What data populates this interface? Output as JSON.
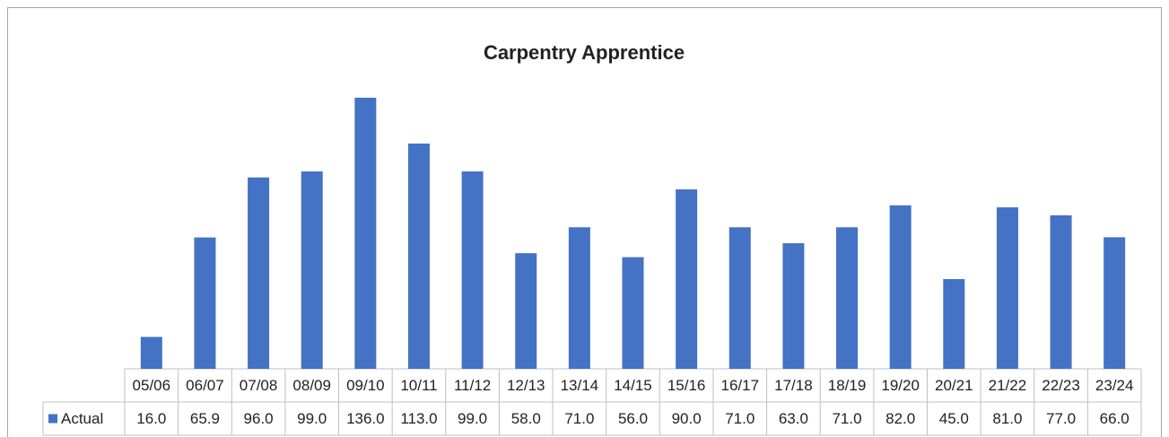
{
  "chart_data": {
    "type": "bar",
    "title": "Carpentry Apprentice",
    "categories": [
      "05/06",
      "06/07",
      "07/08",
      "08/09",
      "09/10",
      "10/11",
      "11/12",
      "12/13",
      "13/14",
      "14/15",
      "15/16",
      "16/17",
      "17/18",
      "18/19",
      "19/20",
      "20/21",
      "21/22",
      "22/23",
      "23/24"
    ],
    "series": [
      {
        "name": "Actual",
        "color": "#4472c4",
        "values": [
          16.0,
          65.9,
          96.0,
          99.0,
          136.0,
          113.0,
          99.0,
          58.0,
          71.0,
          56.0,
          90.0,
          71.0,
          63.0,
          71.0,
          82.0,
          45.0,
          81.0,
          77.0,
          66.0
        ],
        "value_labels": [
          "16.0",
          "65.9",
          "96.0",
          "99.0",
          "136.0",
          "113.0",
          "99.0",
          "58.0",
          "71.0",
          "56.0",
          "90.0",
          "71.0",
          "63.0",
          "71.0",
          "82.0",
          "45.0",
          "81.0",
          "77.0",
          "66.0"
        ]
      }
    ],
    "ylim": [
      0,
      140
    ]
  }
}
